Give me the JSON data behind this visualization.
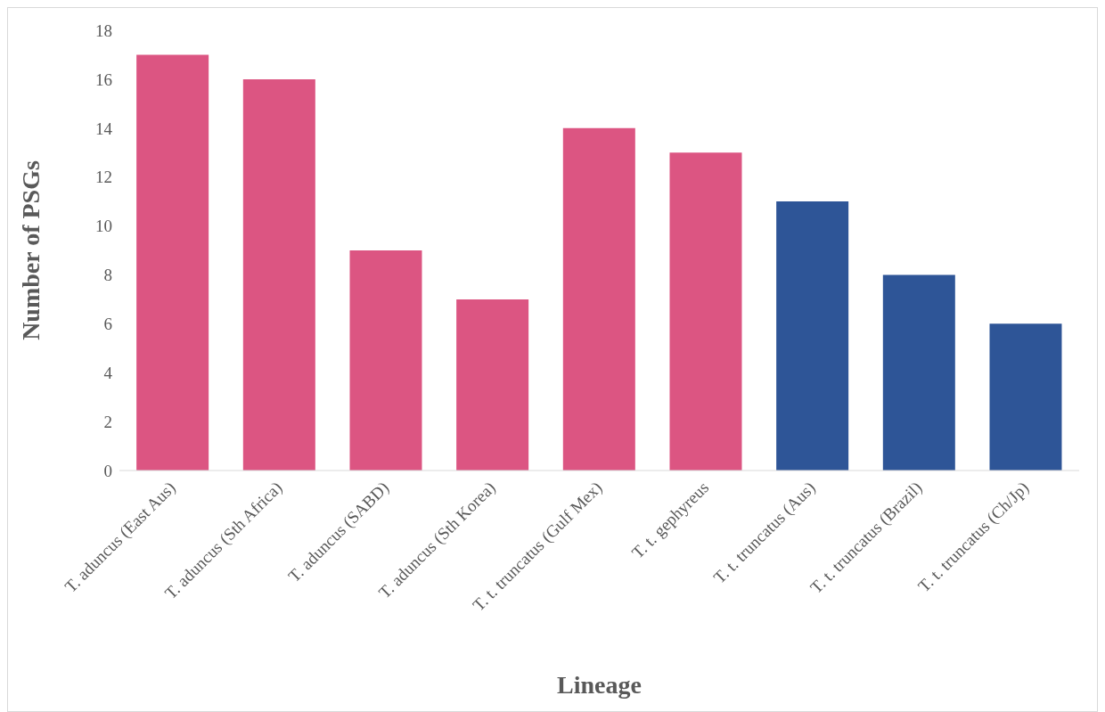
{
  "chart_data": {
    "type": "bar",
    "xlabel": "Lineage",
    "ylabel": "Number of PSGs",
    "categories": [
      "T. aduncus (East Aus)",
      "T. aduncus (Sth Africa)",
      "T. aduncus (SABD)",
      "T. aduncus (Sth Korea)",
      "T. t. truncatus (Gulf Mex)",
      "T. t. gephyreus",
      "T. t. truncatus (Aus)",
      "T. t. truncatus (Brazil)",
      "T. t. truncatus (Ch/Jp)"
    ],
    "values": [
      17,
      16,
      9,
      7,
      14,
      13,
      11,
      8,
      6
    ],
    "colors": [
      "#dc5582",
      "#dc5582",
      "#dc5582",
      "#dc5582",
      "#dc5582",
      "#dc5582",
      "#2e5597",
      "#2e5597",
      "#2e5597"
    ],
    "ylim": [
      0,
      18
    ],
    "yticks": [
      0,
      2,
      4,
      6,
      8,
      10,
      12,
      14,
      16,
      18
    ]
  }
}
